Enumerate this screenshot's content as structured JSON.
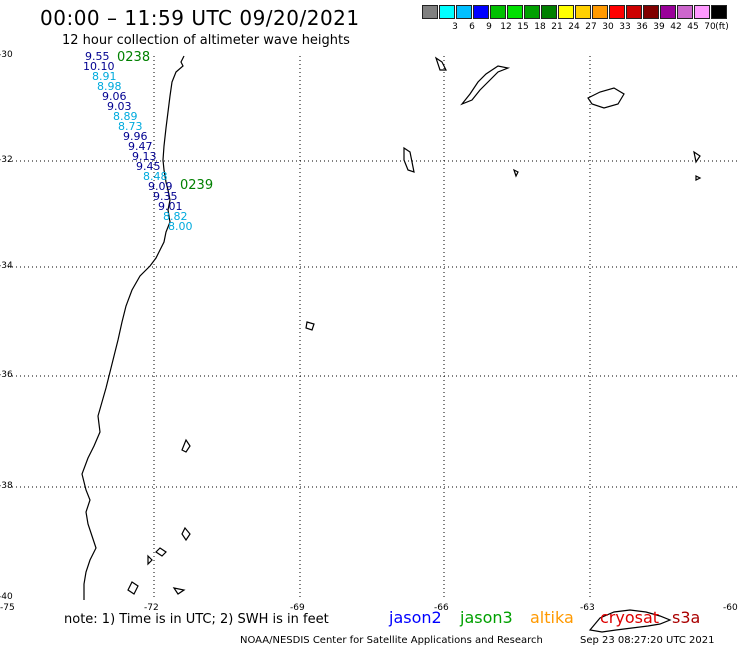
{
  "header": {
    "title": "00:00 – 11:59 UTC 09/20/2021",
    "subtitle": "12 hour collection of altimeter wave heights"
  },
  "legend": {
    "unit": "(ft)",
    "bins": [
      {
        "label": "",
        "color": "#808080"
      },
      {
        "label": "3",
        "color": "#00ffff"
      },
      {
        "label": "6",
        "color": "#00bfff"
      },
      {
        "label": "9",
        "color": "#0000ff"
      },
      {
        "label": "12",
        "color": "#00c000"
      },
      {
        "label": "15",
        "color": "#00e000"
      },
      {
        "label": "18",
        "color": "#00a000"
      },
      {
        "label": "21",
        "color": "#008000"
      },
      {
        "label": "24",
        "color": "#ffff00"
      },
      {
        "label": "27",
        "color": "#ffd000"
      },
      {
        "label": "30",
        "color": "#ff9900"
      },
      {
        "label": "33",
        "color": "#ff0000"
      },
      {
        "label": "36",
        "color": "#cc0000"
      },
      {
        "label": "39",
        "color": "#800000"
      },
      {
        "label": "42",
        "color": "#990099"
      },
      {
        "label": "45",
        "color": "#cc66cc"
      },
      {
        "label": "70",
        "color": "#ff99ff"
      },
      {
        "label": "",
        "color": "#000000"
      }
    ]
  },
  "axes": {
    "lat_labels": [
      "-30",
      "-32",
      "-34",
      "-36",
      "-38",
      "-40"
    ],
    "lon_labels": [
      "-75",
      "-72",
      "-69",
      "-66",
      "-63",
      "-60"
    ]
  },
  "passes": [
    {
      "id": "0238",
      "color": "#008000"
    },
    {
      "id": "0239",
      "color": "#008000"
    }
  ],
  "wave_heights": [
    {
      "value": "9.55",
      "color": "#000090"
    },
    {
      "value": "10.10",
      "color": "#000090"
    },
    {
      "value": "8.91",
      "color": "#00aadd"
    },
    {
      "value": "8.98",
      "color": "#00aadd"
    },
    {
      "value": "9.06",
      "color": "#000090"
    },
    {
      "value": "9.03",
      "color": "#000090"
    },
    {
      "value": "8.89",
      "color": "#00aadd"
    },
    {
      "value": "8.73",
      "color": "#00aadd"
    },
    {
      "value": "9.96",
      "color": "#000090"
    },
    {
      "value": "9.47",
      "color": "#000090"
    },
    {
      "value": "9.13",
      "color": "#000090"
    },
    {
      "value": "9.45",
      "color": "#000090"
    },
    {
      "value": "8.48",
      "color": "#00aadd"
    },
    {
      "value": "9.09",
      "color": "#000090"
    },
    {
      "value": "9.35",
      "color": "#000090"
    },
    {
      "value": "9.01",
      "color": "#000090"
    },
    {
      "value": "8.82",
      "color": "#00aadd"
    },
    {
      "value": "8.00",
      "color": "#00aadd"
    }
  ],
  "footer": {
    "note": "note: 1) Time is in UTC; 2) SWH is in feet",
    "satellites": [
      {
        "name": "jason2",
        "color": "#0000ff"
      },
      {
        "name": "jason3",
        "color": "#00a000"
      },
      {
        "name": "altika",
        "color": "#ff9900"
      },
      {
        "name": "cryosat",
        "color": "#dd0000"
      },
      {
        "name": "s3a",
        "color": "#aa0000"
      }
    ],
    "credit": "NOAA/NESDIS Center for Satellite Applications and Research",
    "timestamp": "Sep 23 08:27:20 UTC 2021"
  }
}
